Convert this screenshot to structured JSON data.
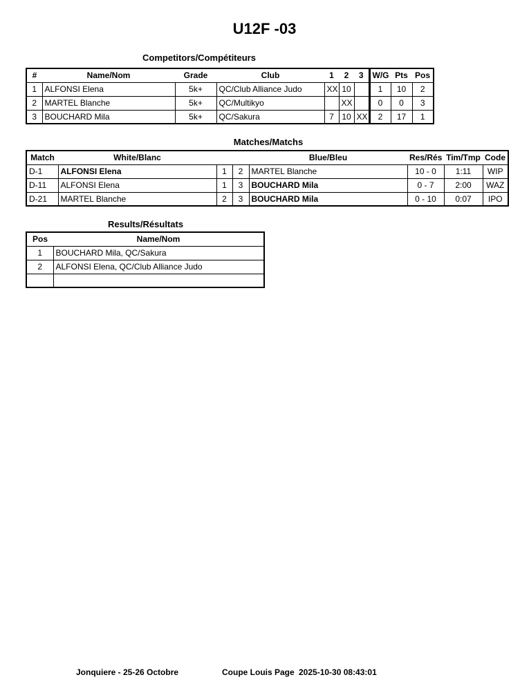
{
  "title": "U12F -03",
  "competitors": {
    "heading": "Competitors/Compétiteurs",
    "headers": [
      "#",
      "Name/Nom",
      "Grade",
      "Club",
      "1",
      "2",
      "3",
      "W/G",
      "Pts",
      "Pos"
    ],
    "rows": [
      [
        "1",
        "ALFONSI Elena",
        "5k+",
        "QC/Club Alliance Judo",
        "XX",
        "10",
        "",
        "1",
        "10",
        "2"
      ],
      [
        "2",
        "MARTEL Blanche",
        "5k+",
        "QC/Multikyo",
        "",
        "XX",
        "",
        "0",
        "0",
        "3"
      ],
      [
        "3",
        "BOUCHARD Mila",
        "5k+",
        "QC/Sakura",
        "7",
        "10",
        "XX",
        "2",
        "17",
        "1"
      ]
    ]
  },
  "matches": {
    "heading": "Matches/Matchs",
    "headers": [
      "Match",
      "White/Blanc",
      "",
      "",
      "Blue/Bleu",
      "Res/Rés",
      "Tim/Tmp",
      "Code"
    ],
    "rows": [
      {
        "match": "D-1",
        "white": "ALFONSI Elena",
        "wn": "1",
        "bn": "2",
        "blue": "MARTEL Blanche",
        "res": "10 - 0",
        "time": "1:11",
        "code": "WIP",
        "winner": "white"
      },
      {
        "match": "D-11",
        "white": "ALFONSI Elena",
        "wn": "1",
        "bn": "3",
        "blue": "BOUCHARD Mila",
        "res": "0 - 7",
        "time": "2:00",
        "code": "WAZ",
        "winner": "blue"
      },
      {
        "match": "D-21",
        "white": "MARTEL Blanche",
        "wn": "2",
        "bn": "3",
        "blue": "BOUCHARD Mila",
        "res": "0 - 10",
        "time": "0:07",
        "code": "IPO",
        "winner": "blue"
      }
    ]
  },
  "results": {
    "heading": "Results/Résultats",
    "headers": [
      "Pos",
      "Name/Nom"
    ],
    "rows": [
      [
        "1",
        "BOUCHARD Mila, QC/Sakura"
      ],
      [
        "2",
        "ALFONSI Elena, QC/Club Alliance Judo"
      ],
      [
        "",
        ""
      ]
    ]
  },
  "footer": {
    "location": "Jonquiere - 25-26 Octobre",
    "event": "Coupe Louis Page",
    "datetime": "2025-10-30 08:43:01"
  }
}
